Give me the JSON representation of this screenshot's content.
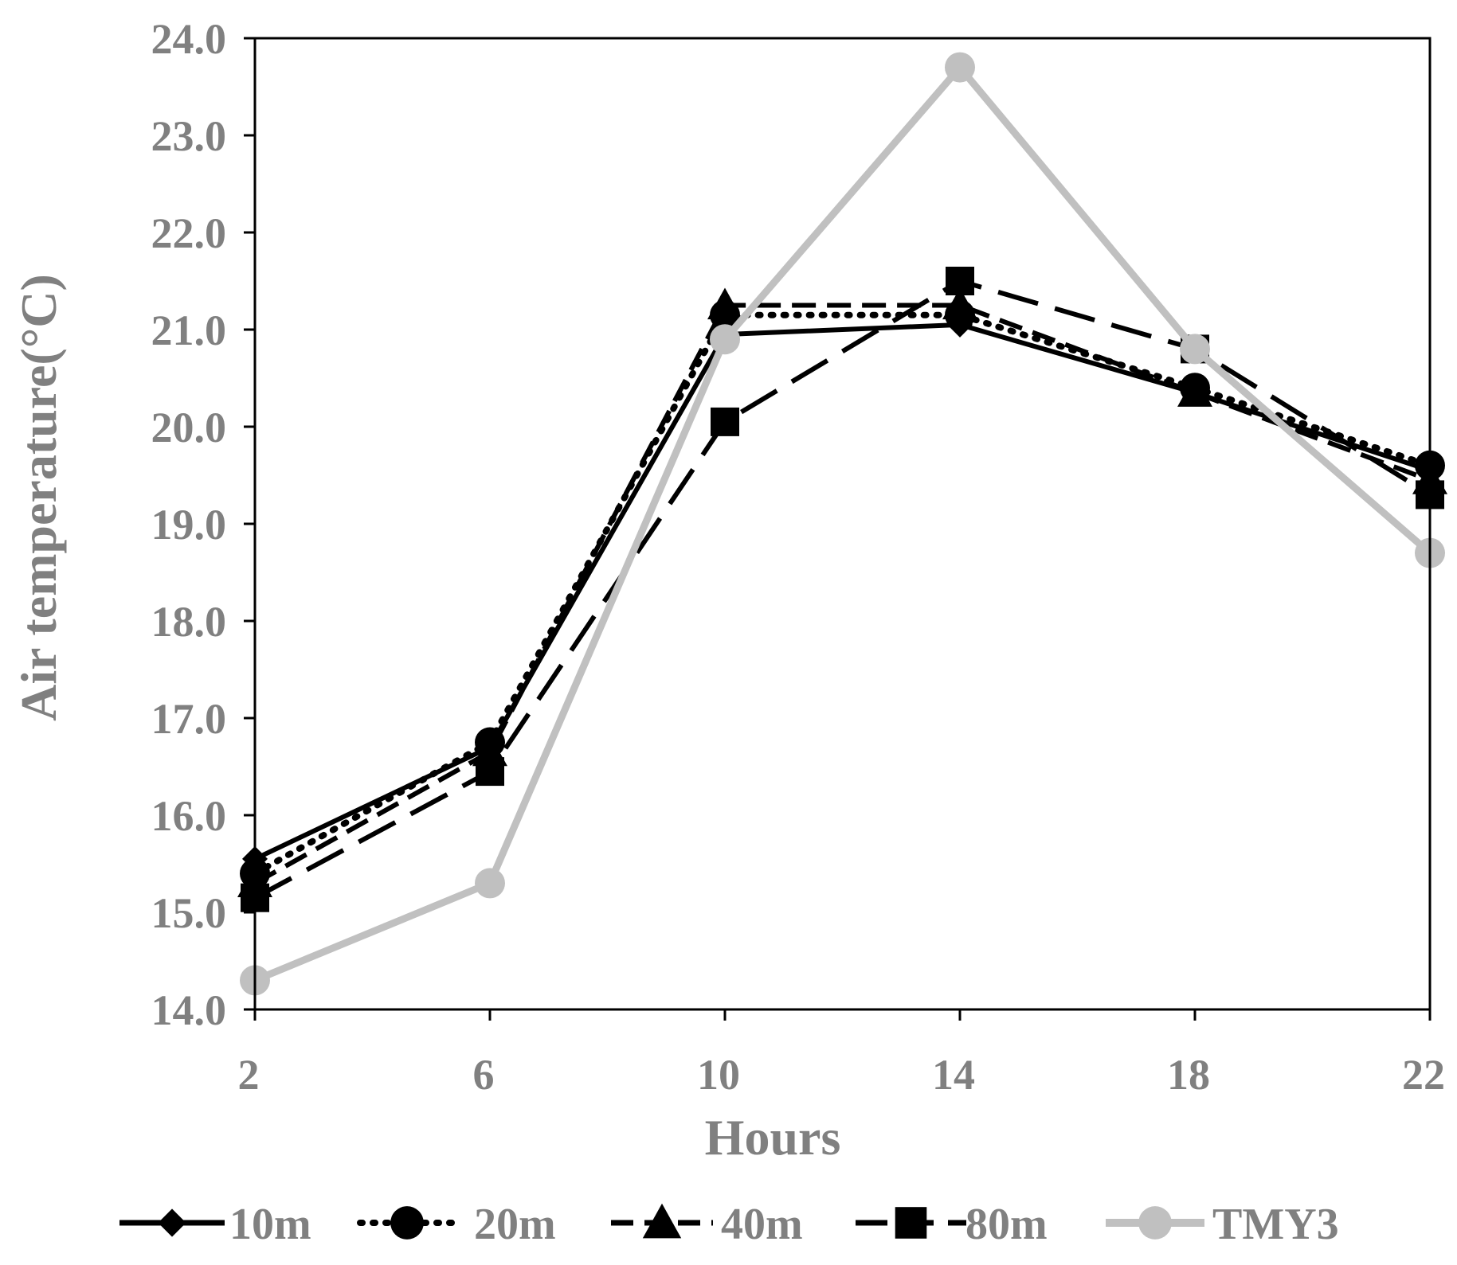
{
  "chart_data": {
    "type": "line",
    "title": "",
    "xlabel": "Hours",
    "ylabel": "Air temperature(°C)",
    "x": [
      2,
      6,
      10,
      14,
      18,
      22
    ],
    "x_tick_labels": [
      "2",
      "6",
      "10",
      "14",
      "18",
      "22"
    ],
    "xlim": [
      2,
      22
    ],
    "ylim": [
      14.0,
      24.0
    ],
    "y_ticks": [
      14.0,
      15.0,
      16.0,
      17.0,
      18.0,
      19.0,
      20.0,
      21.0,
      22.0,
      23.0,
      24.0
    ],
    "y_tick_labels": [
      "14.0",
      "15.0",
      "16.0",
      "17.0",
      "18.0",
      "19.0",
      "20.0",
      "21.0",
      "22.0",
      "23.0",
      "24.0"
    ],
    "grid": false,
    "legend_position": "bottom",
    "series": [
      {
        "name": "10m",
        "values": [
          15.55,
          16.7,
          20.95,
          21.05,
          20.35,
          19.55
        ],
        "color": "#000000",
        "marker": "diamond",
        "line": "solid"
      },
      {
        "name": "20m",
        "values": [
          15.4,
          16.75,
          21.15,
          21.15,
          20.4,
          19.6
        ],
        "color": "#000000",
        "marker": "circle",
        "line": "dotted"
      },
      {
        "name": "40m",
        "values": [
          15.3,
          16.65,
          21.25,
          21.25,
          20.35,
          19.45
        ],
        "color": "#000000",
        "marker": "triangle",
        "line": "dashed"
      },
      {
        "name": "80m",
        "values": [
          15.15,
          16.45,
          20.05,
          21.5,
          20.8,
          19.3
        ],
        "color": "#000000",
        "marker": "square",
        "line": "longdash"
      },
      {
        "name": "TMY3",
        "values": [
          14.3,
          15.3,
          20.9,
          23.7,
          20.8,
          18.7
        ],
        "color": "#c0c0c0",
        "marker": "circle",
        "line": "solid"
      }
    ],
    "text_color": "#808080"
  }
}
